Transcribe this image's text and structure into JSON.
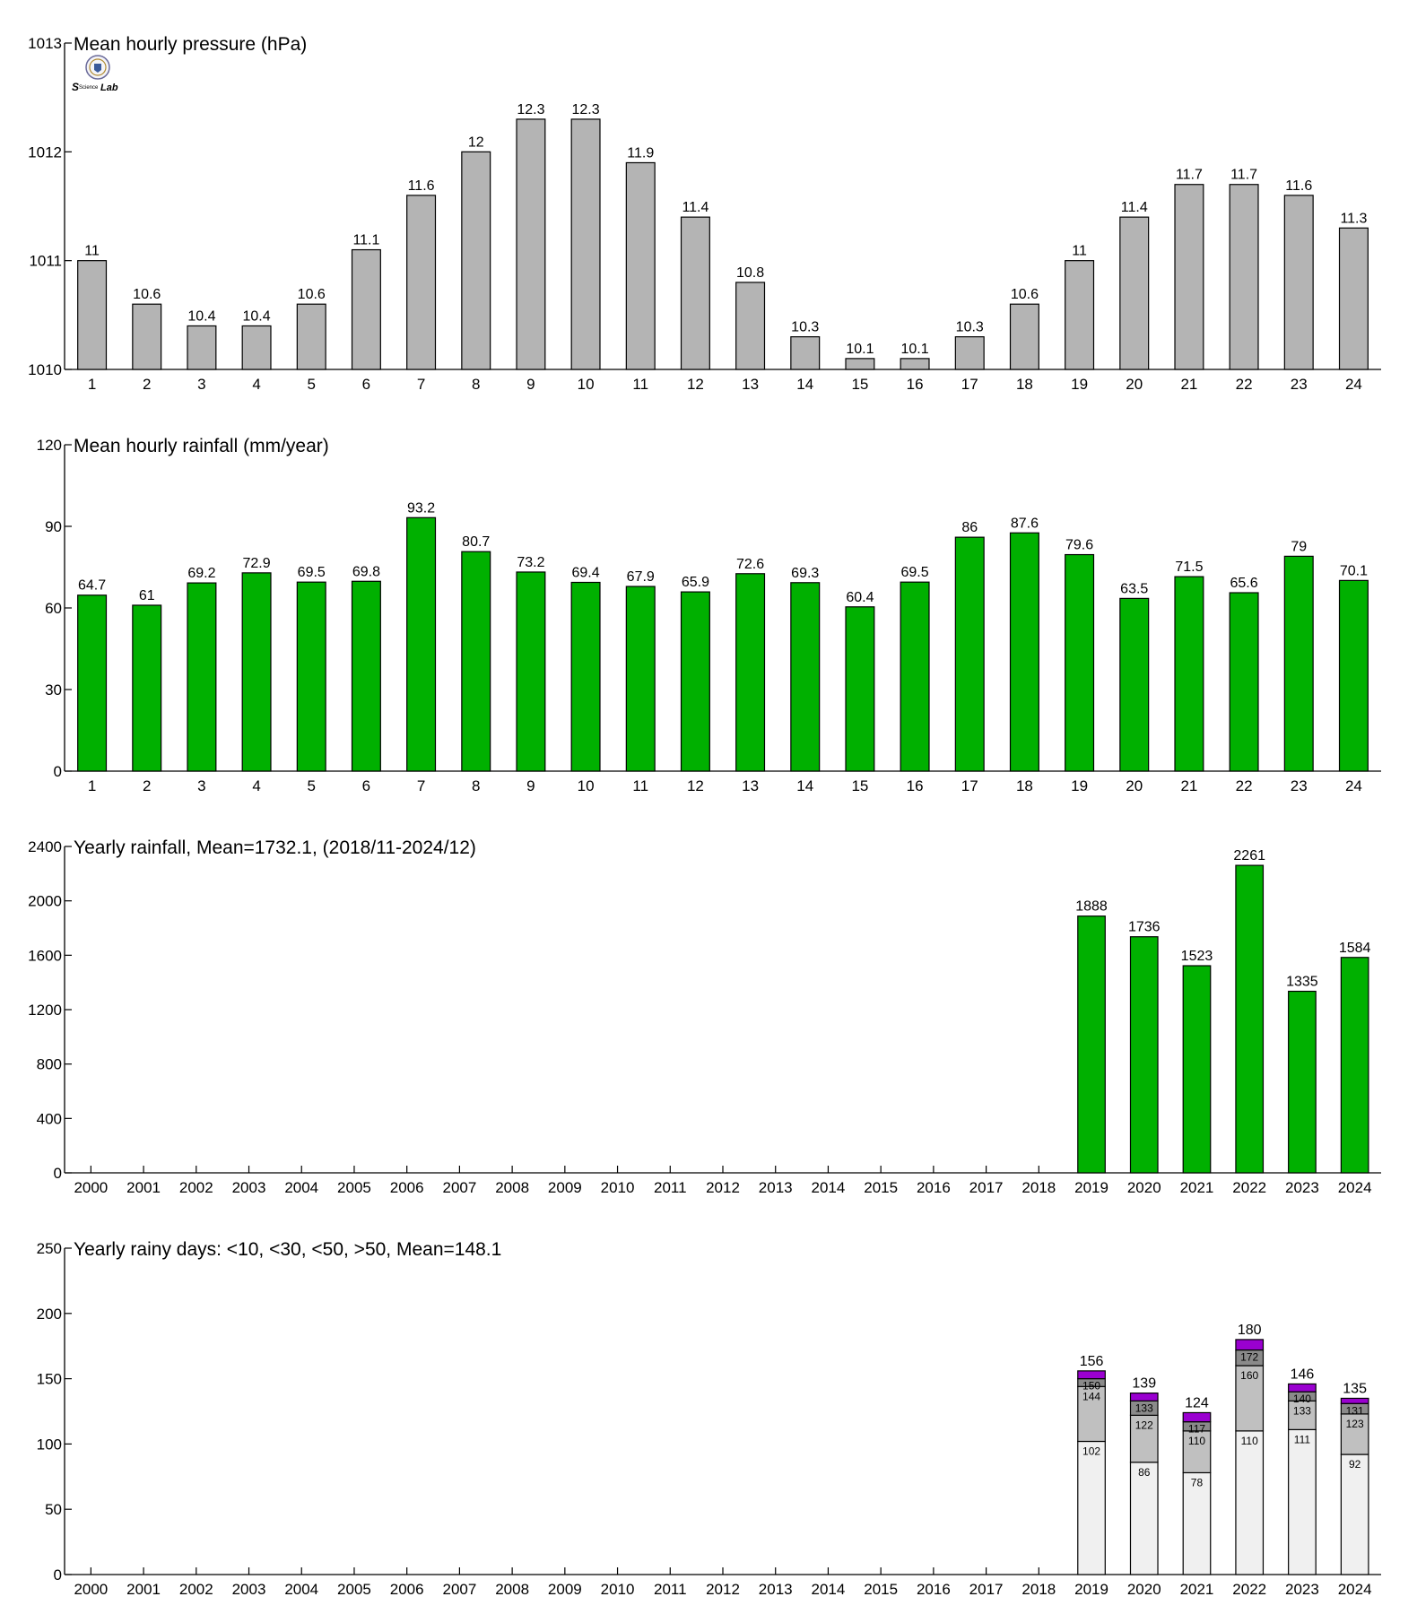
{
  "logo": {
    "name": "lab-logo-icon",
    "text": "Lab"
  },
  "colors": {
    "gray_bar": "#b4b4b4",
    "green_bar": "#00b000",
    "purple": "#9a00d0",
    "light": "#f0f0f0",
    "mid": "#c0c0c0",
    "dark": "#8a8a8a"
  },
  "chart_data": [
    {
      "type": "bar",
      "title": "Mean hourly pressure (hPa)",
      "categories": [
        "1",
        "2",
        "3",
        "4",
        "5",
        "6",
        "7",
        "8",
        "9",
        "10",
        "11",
        "12",
        "13",
        "14",
        "15",
        "16",
        "17",
        "18",
        "19",
        "20",
        "21",
        "22",
        "23",
        "24"
      ],
      "values": [
        1011,
        1010.6,
        1010.4,
        1010.4,
        1010.6,
        1011.1,
        1011.6,
        1012,
        1012.3,
        1012.3,
        1011.9,
        1011.4,
        1010.8,
        1010.3,
        1010.1,
        1010.1,
        1010.3,
        1010.6,
        1011,
        1011.4,
        1011.7,
        1011.7,
        1011.6,
        1011.3
      ],
      "labels": [
        "11",
        "10.6",
        "10.4",
        "10.4",
        "10.6",
        "11.1",
        "11.6",
        "12",
        "12.3",
        "12.3",
        "11.9",
        "11.4",
        "10.8",
        "10.3",
        "10.1",
        "10.1",
        "10.3",
        "10.6",
        "11",
        "11.4",
        "11.7",
        "11.7",
        "11.6",
        "11.3"
      ],
      "ylim": [
        1010,
        1013
      ],
      "yticks": [
        "1010",
        "1011",
        "1012",
        "1013"
      ],
      "color": "#b4b4b4"
    },
    {
      "type": "bar",
      "title": "Mean hourly rainfall (mm/year)",
      "categories": [
        "1",
        "2",
        "3",
        "4",
        "5",
        "6",
        "7",
        "8",
        "9",
        "10",
        "11",
        "12",
        "13",
        "14",
        "15",
        "16",
        "17",
        "18",
        "19",
        "20",
        "21",
        "22",
        "23",
        "24"
      ],
      "values": [
        64.7,
        61,
        69.2,
        72.9,
        69.5,
        69.8,
        93.2,
        80.7,
        73.2,
        69.4,
        67.9,
        65.9,
        72.6,
        69.3,
        60.4,
        69.5,
        86,
        87.6,
        79.6,
        63.5,
        71.5,
        65.6,
        79,
        70.1
      ],
      "labels": [
        "64.7",
        "61",
        "69.2",
        "72.9",
        "69.5",
        "69.8",
        "93.2",
        "80.7",
        "73.2",
        "69.4",
        "67.9",
        "65.9",
        "72.6",
        "69.3",
        "60.4",
        "69.5",
        "86",
        "87.6",
        "79.6",
        "63.5",
        "71.5",
        "65.6",
        "79",
        "70.1"
      ],
      "ylim": [
        0,
        120
      ],
      "yticks": [
        "0",
        "30",
        "60",
        "90",
        "120"
      ],
      "color": "#00b000"
    },
    {
      "type": "bar",
      "title": "Yearly rainfall, Mean=1732.1, (2018/11-2024/12)",
      "categories": [
        "2000",
        "2001",
        "2002",
        "2003",
        "2004",
        "2005",
        "2006",
        "2007",
        "2008",
        "2009",
        "2010",
        "2011",
        "2012",
        "2013",
        "2014",
        "2015",
        "2016",
        "2017",
        "2018",
        "2019",
        "2020",
        "2021",
        "2022",
        "2023",
        "2024"
      ],
      "values": [
        null,
        null,
        null,
        null,
        null,
        null,
        null,
        null,
        null,
        null,
        null,
        null,
        null,
        null,
        null,
        null,
        null,
        null,
        null,
        1888,
        1736,
        1523,
        2261,
        1335,
        1584
      ],
      "labels": [
        "",
        "",
        "",
        "",
        "",
        "",
        "",
        "",
        "",
        "",
        "",
        "",
        "",
        "",
        "",
        "",
        "",
        "",
        "",
        "1888",
        "1736",
        "1523",
        "2261",
        "1335",
        "1584"
      ],
      "ylim": [
        0,
        2400
      ],
      "yticks": [
        "0",
        "400",
        "800",
        "1200",
        "1600",
        "2000",
        "2400"
      ],
      "color": "#00b000"
    },
    {
      "type": "bar",
      "stacked": true,
      "title": "Yearly rainy days: <10, <30, <50, >50, Mean=148.1",
      "categories": [
        "2000",
        "2001",
        "2002",
        "2003",
        "2004",
        "2005",
        "2006",
        "2007",
        "2008",
        "2009",
        "2010",
        "2011",
        "2012",
        "2013",
        "2014",
        "2015",
        "2016",
        "2017",
        "2018",
        "2019",
        "2020",
        "2021",
        "2022",
        "2023",
        "2024"
      ],
      "cumulative": [
        {
          "year": "2019",
          "lt10": 102,
          "lt30": 144,
          "lt50": 150,
          "total": 156
        },
        {
          "year": "2020",
          "lt10": 86,
          "lt30": 122,
          "lt50": 133,
          "total": 139
        },
        {
          "year": "2021",
          "lt10": 78,
          "lt30": 110,
          "lt50": 117,
          "total": 124
        },
        {
          "year": "2022",
          "lt10": 110,
          "lt30": 160,
          "lt50": 172,
          "total": 180
        },
        {
          "year": "2023",
          "lt10": 111,
          "lt30": 133,
          "lt50": 140,
          "total": 146
        },
        {
          "year": "2024",
          "lt10": 92,
          "lt30": 123,
          "lt50": 131,
          "total": 135
        }
      ],
      "ylim": [
        0,
        250
      ],
      "yticks": [
        "0",
        "50",
        "100",
        "150",
        "200",
        "250"
      ]
    }
  ]
}
